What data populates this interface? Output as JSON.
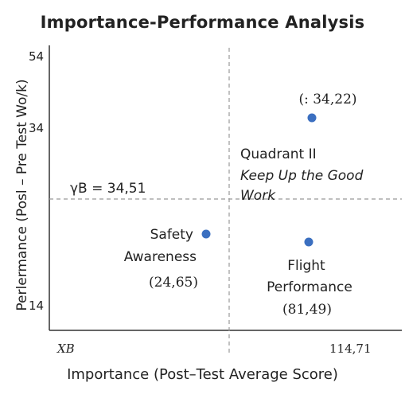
{
  "chart_data": {
    "type": "scatter",
    "title": "Importance-Performance Analysis",
    "xlabel": "Importance  (Post–Test Average Score)",
    "ylabel": "Perlermance (Posl – Pre Test Wo/k)",
    "y_ticks": [
      "54",
      "34",
      "14"
    ],
    "x_tick_labels": {
      "left": "XB",
      "right": "114,71"
    },
    "crosshair": {
      "y_label": "γB = 34,51"
    },
    "points": [
      {
        "name_lines": [
          "Safety",
          "Awareness"
        ],
        "coord_label": "(24,65)",
        "color": "#3b6fc0"
      },
      {
        "name_lines": [],
        "coord_label": "(:  34,22)",
        "color": "#3b6fc0"
      },
      {
        "name_lines": [
          "Flight",
          "Performance"
        ],
        "coord_label": "(81,49)",
        "color": "#3b6fc0"
      }
    ],
    "quadrant_label": {
      "title": "Quadrant II",
      "subtitle_lines": [
        "Keep Up the Good",
        "Work"
      ]
    },
    "grid": false
  }
}
